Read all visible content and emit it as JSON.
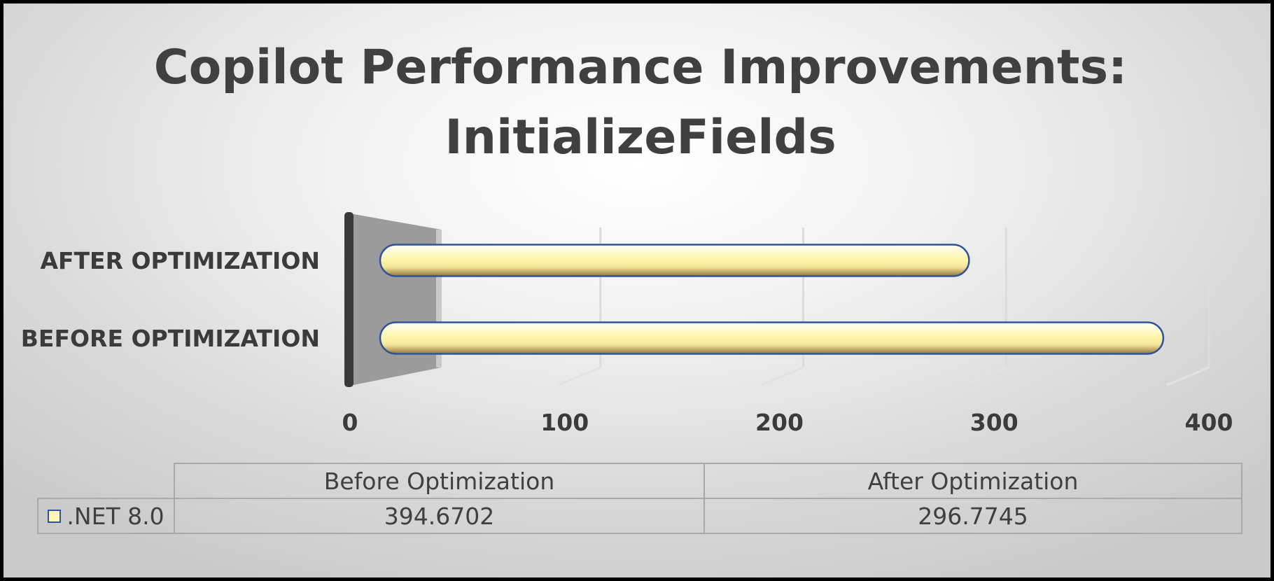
{
  "title_line1": "Copilot Performance Improvements:",
  "title_line2": "InitializeFields",
  "chart_data": {
    "type": "bar",
    "orientation": "horizontal",
    "title": "Copilot Performance Improvements: InitializeFields",
    "categories": [
      "BEFORE OPTIMIZATION",
      "AFTER OPTIMIZATION"
    ],
    "series": [
      {
        "name": ".NET 8.0",
        "values": [
          394.6702,
          296.7745
        ]
      }
    ],
    "xlim": [
      0,
      400
    ],
    "ticks": [
      "0",
      "100",
      "200",
      "300",
      "400"
    ],
    "grid": true,
    "legend": "data table",
    "bar_color": "#fff6b8",
    "bar_border_color": "#2f5597"
  },
  "table": {
    "headers": [
      "Before Optimization",
      "After Optimization"
    ],
    "row_label": ".NET 8.0",
    "values": [
      "394.6702",
      "296.7745"
    ]
  }
}
